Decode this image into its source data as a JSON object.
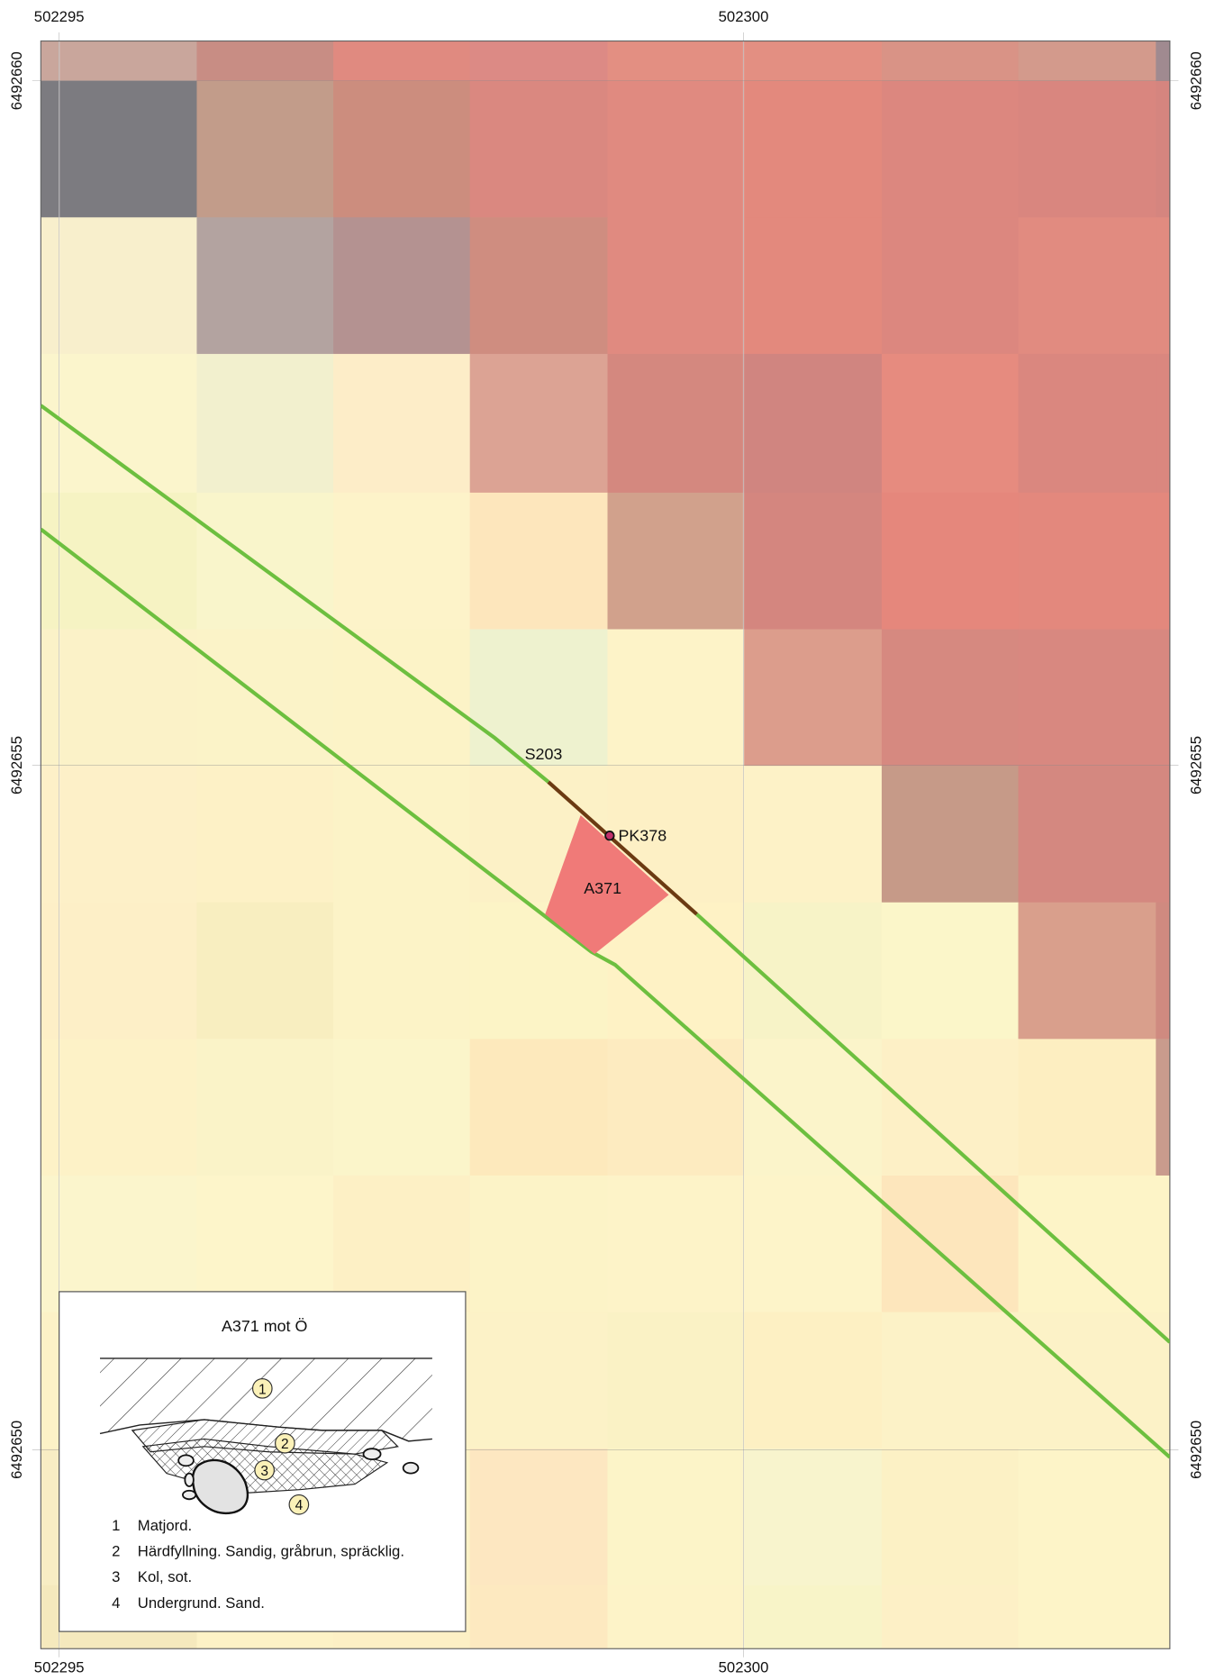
{
  "map": {
    "easting_ticks": [
      502295,
      502300
    ],
    "northing_ticks": [
      6492660,
      6492655,
      6492650
    ],
    "labels": {
      "line": "S203",
      "point": "PK378",
      "feature": "A371"
    }
  },
  "inset": {
    "title": "A371 mot Ö",
    "legend": [
      {
        "number": "1",
        "text": "Matjord."
      },
      {
        "number": "2",
        "text": "Härdfyllning. Sandig, gråbrun, spräcklig."
      },
      {
        "number": "3",
        "text": "Kol, sot."
      },
      {
        "number": "4",
        "text": "Undergrund. Sand."
      }
    ]
  }
}
